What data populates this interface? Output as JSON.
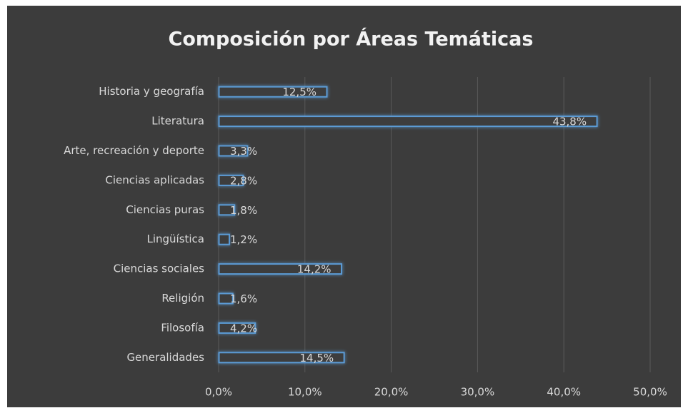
{
  "chart_data": {
    "type": "barh",
    "title": "Composición por Áreas Temáticas",
    "categories": [
      "Historia y geografía",
      "Literatura",
      "Arte, recreación y deporte",
      "Ciencias aplicadas",
      "Ciencias puras",
      "Lingüística",
      "Ciencias sociales",
      "Religión",
      "Filosofía",
      "Generalidades"
    ],
    "values": [
      12.5,
      43.8,
      3.3,
      2.8,
      1.8,
      1.2,
      14.2,
      1.6,
      4.2,
      14.5
    ],
    "value_labels": [
      "12,5%",
      "43,8%",
      "3,3%",
      "2,8%",
      "1,8%",
      "1,2%",
      "14,2%",
      "1,6%",
      "4,2%",
      "14,5%"
    ],
    "color": "#5b9bd5",
    "xlim": [
      0,
      50
    ],
    "xticks": [
      {
        "value": 0,
        "label": "0,0%"
      },
      {
        "value": 10,
        "label": "10,0%"
      },
      {
        "value": 20,
        "label": "20,0%"
      },
      {
        "value": 30,
        "label": "30,0%"
      },
      {
        "value": 40,
        "label": "40,0%"
      },
      {
        "value": 50,
        "label": "50,0%"
      }
    ],
    "grid": true
  }
}
